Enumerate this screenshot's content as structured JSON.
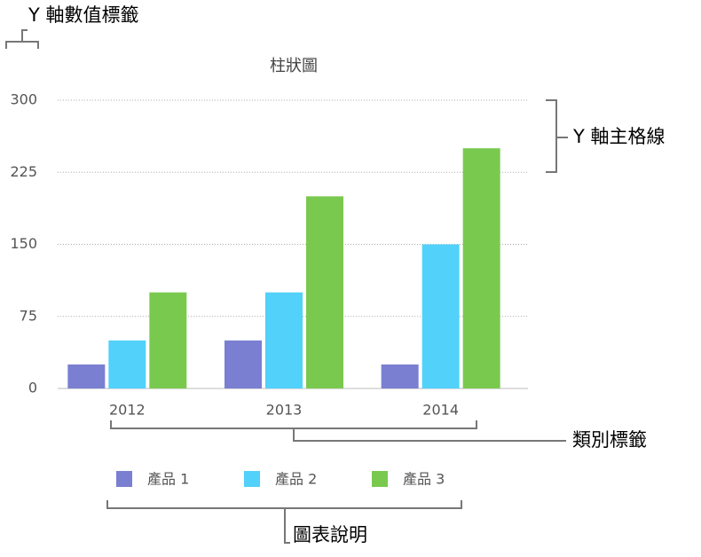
{
  "chart_data": {
    "type": "bar",
    "title": "柱狀圖",
    "categories": [
      "2012",
      "2013",
      "2014"
    ],
    "series": [
      {
        "name": "產品 1",
        "color": "#7a7fd1",
        "values": [
          25,
          50,
          25
        ]
      },
      {
        "name": "產品 2",
        "color": "#52d1fa",
        "values": [
          50,
          100,
          150
        ]
      },
      {
        "name": "產品 3",
        "color": "#7ac94f",
        "values": [
          100,
          200,
          250
        ]
      }
    ],
    "ylim": [
      0,
      300
    ],
    "yticks": [
      0,
      75,
      150,
      225,
      300
    ],
    "grid": true,
    "annotations": [
      "Y 軸數值標籤",
      "Y 軸主格線",
      "類別標籤",
      "圖表說明"
    ]
  }
}
